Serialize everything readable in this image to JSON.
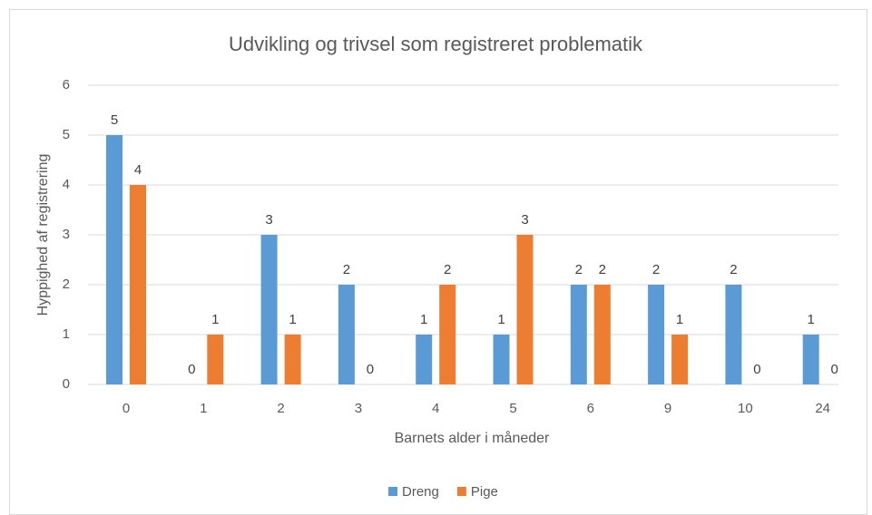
{
  "chart_data": {
    "type": "bar",
    "title": "Udvikling og trivsel som registreret problematik",
    "x_label": "Barnets alder i måneder",
    "y_label": "Hyppighed af registrering",
    "categories": [
      "0",
      "1",
      "2",
      "3",
      "4",
      "5",
      "6",
      "9",
      "10",
      "24"
    ],
    "series": [
      {
        "name": "Dreng",
        "color": "#5b9bd5",
        "values": [
          5,
          0,
          3,
          2,
          1,
          1,
          2,
          2,
          2,
          1
        ]
      },
      {
        "name": "Pige",
        "color": "#ed7d31",
        "values": [
          4,
          1,
          1,
          0,
          2,
          3,
          2,
          1,
          0,
          0
        ]
      }
    ],
    "ylim": [
      0,
      6
    ],
    "yticks": [
      0,
      1,
      2,
      3,
      4,
      5,
      6
    ],
    "grid": true,
    "legend": "bottom"
  }
}
